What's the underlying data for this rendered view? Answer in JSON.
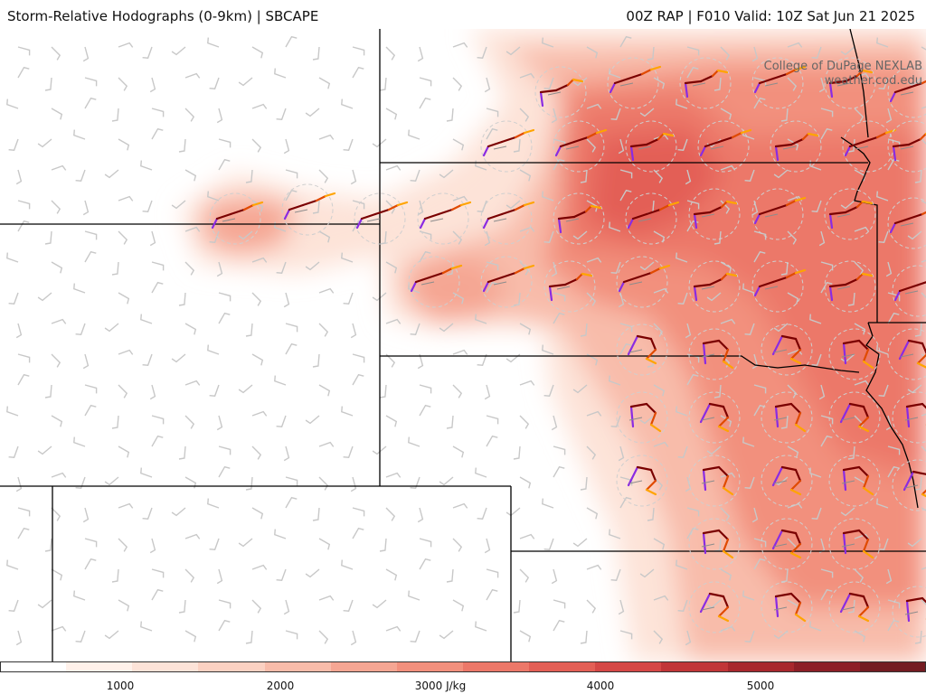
{
  "header": {
    "title_left": "Storm-Relative Hodographs (0-9km) | SBCAPE",
    "title_right": "00Z RAP | F010 Valid: 10Z Sat Jun 21 2025"
  },
  "credits": {
    "line1": "College of DuPage NEXLAB",
    "line2": "weather.cod.edu"
  },
  "colorbar": {
    "variable": "SBCAPE",
    "units": "J/kg",
    "range": [
      0,
      6000
    ],
    "labels": [
      "1000",
      "2000",
      "3000 J/kg",
      "4000",
      "5000"
    ],
    "colors": [
      "#ffffff",
      "#fff1ea",
      "#fde3d8",
      "#fbd1c2",
      "#f8bcaa",
      "#f5a693",
      "#f2907d",
      "#ec7869",
      "#e35f56",
      "#d54846",
      "#c13638",
      "#a8282d",
      "#8d1f27",
      "#741c22"
    ]
  },
  "map": {
    "region": "Central Plains (Colorado, Kansas, Nebraska, Oklahoma, Iowa, Missouri)",
    "fill_field": "SBCAPE",
    "overlay": "storm-relative hodographs 0-9km with wind barbs",
    "hodograph_colors": {
      "layer_0_3km": "#7a0000",
      "layer_3_6km": "#e04a00",
      "layer_6_9km": "#ffa400",
      "layer_lowest": "#8a2be2"
    }
  }
}
